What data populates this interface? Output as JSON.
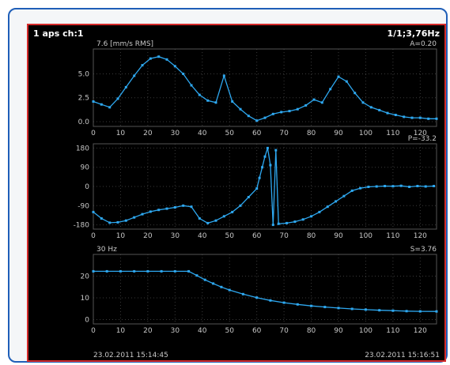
{
  "header": {
    "left": "1 aps ch:1",
    "right": "1/1;3,76Hz"
  },
  "colors": {
    "frame_border": "#d52b2b",
    "background": "#000000",
    "trace": "#2ea8f0",
    "grid": "#3a3a3a",
    "text": "#c8c8c8",
    "outer_border": "#1f5fb8"
  },
  "footer": {
    "start_time": "23.02.2011 15:14:45",
    "end_time": "23.02.2011 15:16:51"
  },
  "chart_data": [
    {
      "type": "line",
      "unit_label": "7.6 [mm/s RMS]",
      "corner_label": "A=0.20",
      "x_ticks": [
        0,
        10,
        20,
        30,
        40,
        50,
        60,
        70,
        80,
        90,
        100,
        110,
        120
      ],
      "y_ticks": [
        0.0,
        2.5,
        5.0
      ],
      "xlim": [
        0,
        126
      ],
      "ylim": [
        -0.5,
        7.6
      ],
      "x": [
        0,
        3,
        6,
        9,
        12,
        15,
        18,
        21,
        24,
        27,
        30,
        33,
        36,
        39,
        42,
        45,
        48,
        51,
        54,
        57,
        60,
        63,
        66,
        69,
        72,
        75,
        78,
        81,
        84,
        87,
        90,
        93,
        96,
        99,
        102,
        105,
        108,
        111,
        114,
        117,
        120,
        123,
        126
      ],
      "y": [
        2.1,
        1.8,
        1.5,
        2.4,
        3.6,
        4.8,
        5.9,
        6.6,
        6.8,
        6.5,
        5.8,
        5.0,
        3.8,
        2.8,
        2.2,
        2.0,
        4.8,
        2.1,
        1.3,
        0.6,
        0.1,
        0.4,
        0.8,
        1.0,
        1.1,
        1.3,
        1.7,
        2.3,
        2.0,
        3.4,
        4.7,
        4.2,
        3.0,
        2.0,
        1.5,
        1.2,
        0.9,
        0.7,
        0.5,
        0.4,
        0.4,
        0.3,
        0.3
      ]
    },
    {
      "type": "line",
      "corner_label": "P=-33.2",
      "x_ticks": [
        0,
        10,
        20,
        30,
        40,
        50,
        60,
        70,
        80,
        90,
        100,
        110,
        120
      ],
      "y_ticks": [
        180,
        90,
        0,
        -90,
        -180
      ],
      "xlim": [
        0,
        126
      ],
      "ylim": [
        -200,
        200
      ],
      "x": [
        0,
        3,
        6,
        9,
        12,
        15,
        18,
        21,
        24,
        27,
        30,
        33,
        36,
        39,
        42,
        45,
        48,
        51,
        54,
        57,
        60,
        61,
        62,
        63,
        64,
        65,
        66,
        67,
        68,
        71,
        74,
        77,
        80,
        83,
        86,
        89,
        92,
        95,
        98,
        101,
        104,
        107,
        110,
        113,
        116,
        119,
        122,
        125
      ],
      "y": [
        -120,
        -150,
        -170,
        -168,
        -160,
        -145,
        -130,
        -118,
        -110,
        -104,
        -98,
        -90,
        -95,
        -150,
        -172,
        -160,
        -140,
        -120,
        -90,
        -50,
        -10,
        40,
        90,
        140,
        180,
        100,
        -180,
        170,
        -175,
        -172,
        -165,
        -155,
        -140,
        -120,
        -95,
        -70,
        -45,
        -20,
        -8,
        -2,
        0,
        2,
        1,
        3,
        -2,
        2,
        0,
        2
      ]
    },
    {
      "type": "line",
      "unit_label": "30 Hz",
      "corner_label": "S=3.76",
      "x_ticks": [
        0,
        10,
        20,
        30,
        40,
        50,
        60,
        70,
        80,
        90,
        100,
        110,
        120
      ],
      "y_ticks": [
        20,
        10,
        0
      ],
      "xlim": [
        0,
        126
      ],
      "ylim": [
        -2,
        30
      ],
      "x": [
        0,
        5,
        10,
        15,
        20,
        25,
        30,
        35,
        38,
        41,
        44,
        47,
        50,
        55,
        60,
        65,
        70,
        75,
        80,
        85,
        90,
        95,
        100,
        105,
        110,
        115,
        120,
        126
      ],
      "y": [
        22.2,
        22.2,
        22.2,
        22.2,
        22.2,
        22.2,
        22.2,
        22.2,
        20.3,
        18.3,
        16.6,
        15.0,
        13.6,
        11.7,
        10.1,
        8.8,
        7.8,
        7.0,
        6.3,
        5.8,
        5.3,
        4.9,
        4.6,
        4.3,
        4.1,
        3.9,
        3.8,
        3.76
      ]
    }
  ]
}
